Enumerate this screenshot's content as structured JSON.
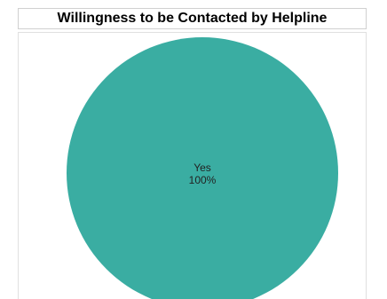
{
  "chart_data": {
    "type": "pie",
    "title": "Willingness to be Contacted by Helpline",
    "slices": [
      {
        "label": "Yes",
        "value": 100,
        "percent_label": "100%",
        "color": "#3aada2"
      }
    ]
  }
}
